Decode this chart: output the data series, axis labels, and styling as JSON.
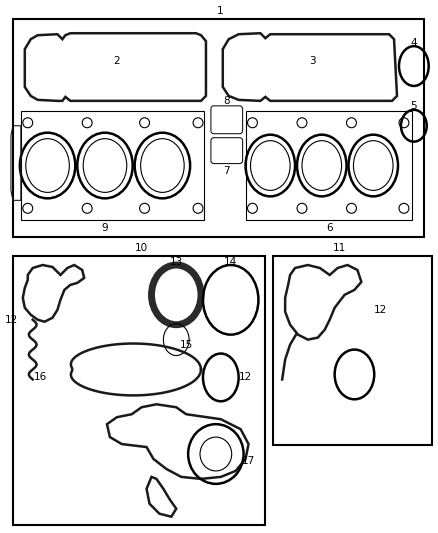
{
  "bg_color": "#ffffff",
  "line_color": "#1a1a1a",
  "label_color": "#000000",
  "fig_width": 4.38,
  "fig_height": 5.33,
  "dpi": 100
}
